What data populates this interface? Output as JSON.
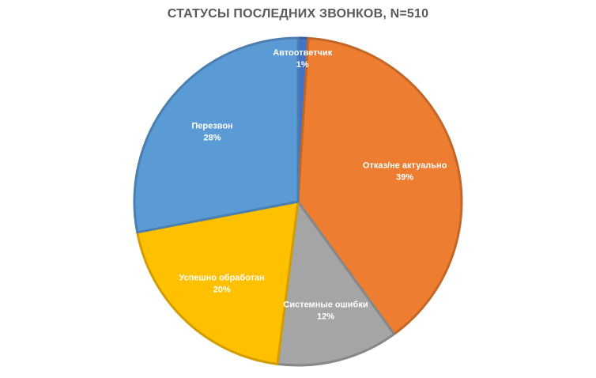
{
  "chart_data": {
    "type": "pie",
    "title": "СТАТУСЫ ПОСЛЕДНИХ ЗВОНКОВ, N=510",
    "legend": "none",
    "slices": [
      {
        "label": "Автоответчик",
        "value": 1,
        "value_label": "1%",
        "color": "#4472C4"
      },
      {
        "label": "Отказ/не актуально",
        "value": 39,
        "value_label": "39%",
        "color": "#ED7D31"
      },
      {
        "label": "Системные ошибки",
        "value": 12,
        "value_label": "12%",
        "color": "#A5A5A5"
      },
      {
        "label": "Успешно обработан",
        "value": 20,
        "value_label": "20%",
        "color": "#FFC000"
      },
      {
        "label": "Перезвон",
        "value": 28,
        "value_label": "28%",
        "color": "#5B9BD5"
      }
    ]
  }
}
